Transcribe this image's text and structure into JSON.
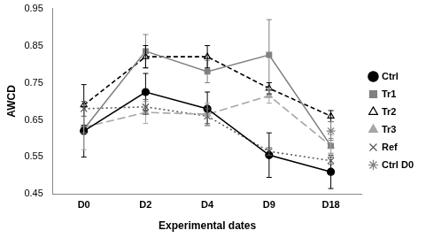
{
  "chart_data": {
    "type": "line",
    "x_label": "Experimental dates",
    "y_label": "AWCD",
    "categories": [
      "D0",
      "D2",
      "D4",
      "D9",
      "D18"
    ],
    "ylim": [
      0.45,
      0.95
    ],
    "yticks": [
      0.45,
      0.55,
      0.65,
      0.75,
      0.85,
      0.95
    ],
    "grid": false,
    "legend": "right",
    "series": [
      {
        "name": "Ctrl",
        "color": "#000000",
        "marker": "circle",
        "line_style": "solid",
        "values": [
          0.62,
          0.725,
          0.68,
          0.555,
          0.51
        ],
        "errors": [
          0.07,
          0.05,
          0.045,
          0.06,
          0.045
        ]
      },
      {
        "name": "Tr1",
        "color": "#808080",
        "marker": "square",
        "line_style": "solid",
        "values": [
          0.625,
          0.835,
          0.78,
          0.825,
          0.58
        ],
        "errors": [
          0.01,
          0.045,
          0.03,
          0.095,
          0.02
        ]
      },
      {
        "name": "Tr2",
        "color": "#000000",
        "marker": "triangle-open",
        "line_style": "dashed",
        "values": [
          0.69,
          0.82,
          0.82,
          0.735,
          0.66
        ],
        "errors": [
          0.055,
          0.03,
          0.03,
          0.015,
          0.015
        ]
      },
      {
        "name": "Tr3",
        "color": "#a6a6a6",
        "marker": "triangle",
        "line_style": "long-dashed",
        "values": [
          0.63,
          0.67,
          0.665,
          0.715,
          0.58
        ],
        "errors": [
          0.06,
          0.03,
          0.03,
          0.02,
          0.03
        ]
      },
      {
        "name": "Ref",
        "color": "#595959",
        "marker": "x",
        "line_style": "dotted",
        "values": [
          0.68,
          0.685,
          0.66,
          0.565,
          0.54
        ],
        "errors": [
          0.02,
          0.02,
          0.02,
          0.01,
          0.01
        ]
      },
      {
        "name": "Ctrl D0",
        "color": "#808080",
        "marker": "asterisk",
        "line_style": "none",
        "values": [
          null,
          null,
          null,
          null,
          0.62
        ],
        "errors": [
          null,
          null,
          null,
          null,
          0.025
        ]
      }
    ]
  }
}
